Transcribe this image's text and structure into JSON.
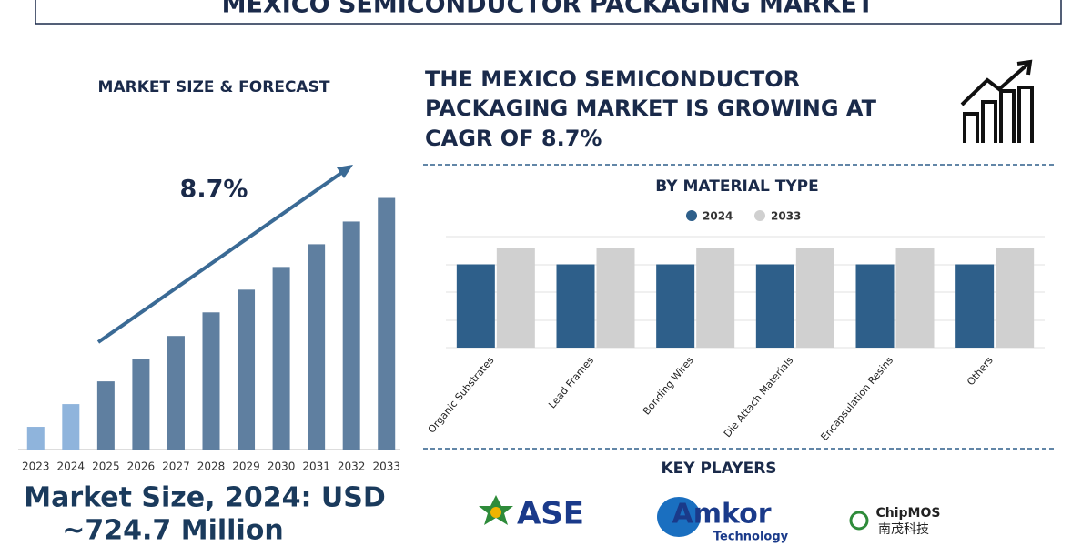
{
  "header": {
    "title": "MEXICO SEMICONDUCTOR PACKAGING MARKET"
  },
  "chart_data": [
    {
      "type": "bar",
      "title": "MARKET SIZE & FORECAST",
      "annotation": "8.7%",
      "categories": [
        "2023",
        "2024",
        "2025",
        "2026",
        "2027",
        "2028",
        "2029",
        "2030",
        "2031",
        "2032",
        "2033"
      ],
      "values": [
        26,
        52,
        78,
        104,
        130,
        157,
        183,
        209,
        235,
        261,
        288
      ],
      "colors": [
        "#8fb4dc",
        "#8fb4dc",
        "#5f7fa0",
        "#5f7fa0",
        "#5f7fa0",
        "#5f7fa0",
        "#5f7fa0",
        "#5f7fa0",
        "#5f7fa0",
        "#5f7fa0",
        "#5f7fa0"
      ],
      "ylim": [
        0,
        300
      ]
    },
    {
      "type": "bar",
      "title": "BY MATERIAL TYPE",
      "categories": [
        "Organic Substrates",
        "Lead Frames",
        "Bonding Wires",
        "Die Attach Materials",
        "Encapsulation Resins",
        "Others"
      ],
      "series": [
        {
          "name": "2024",
          "color": "#2e5f8a",
          "values": [
            3.0,
            3.0,
            3.0,
            3.0,
            3.0,
            3.0
          ]
        },
        {
          "name": "2033",
          "color": "#d0d0d0",
          "values": [
            3.6,
            3.6,
            3.6,
            3.6,
            3.6,
            3.6
          ]
        }
      ],
      "ylim": [
        0,
        4
      ]
    }
  ],
  "market_size": {
    "lines": [
      "Market Size, 2024: USD",
      "~724.7 Million"
    ]
  },
  "headline": {
    "lines": [
      "THE MEXICO SEMICONDUCTOR",
      "PACKAGING MARKET IS GROWING AT",
      "CAGR OF 8.7%"
    ]
  },
  "key_players": {
    "title": "KEY PLAYERS",
    "logos": [
      {
        "name": "ASE"
      },
      {
        "name": "Amkor",
        "tagline": "Technology"
      },
      {
        "name": "ChipMOS",
        "local_name": "南茂科技"
      }
    ]
  }
}
